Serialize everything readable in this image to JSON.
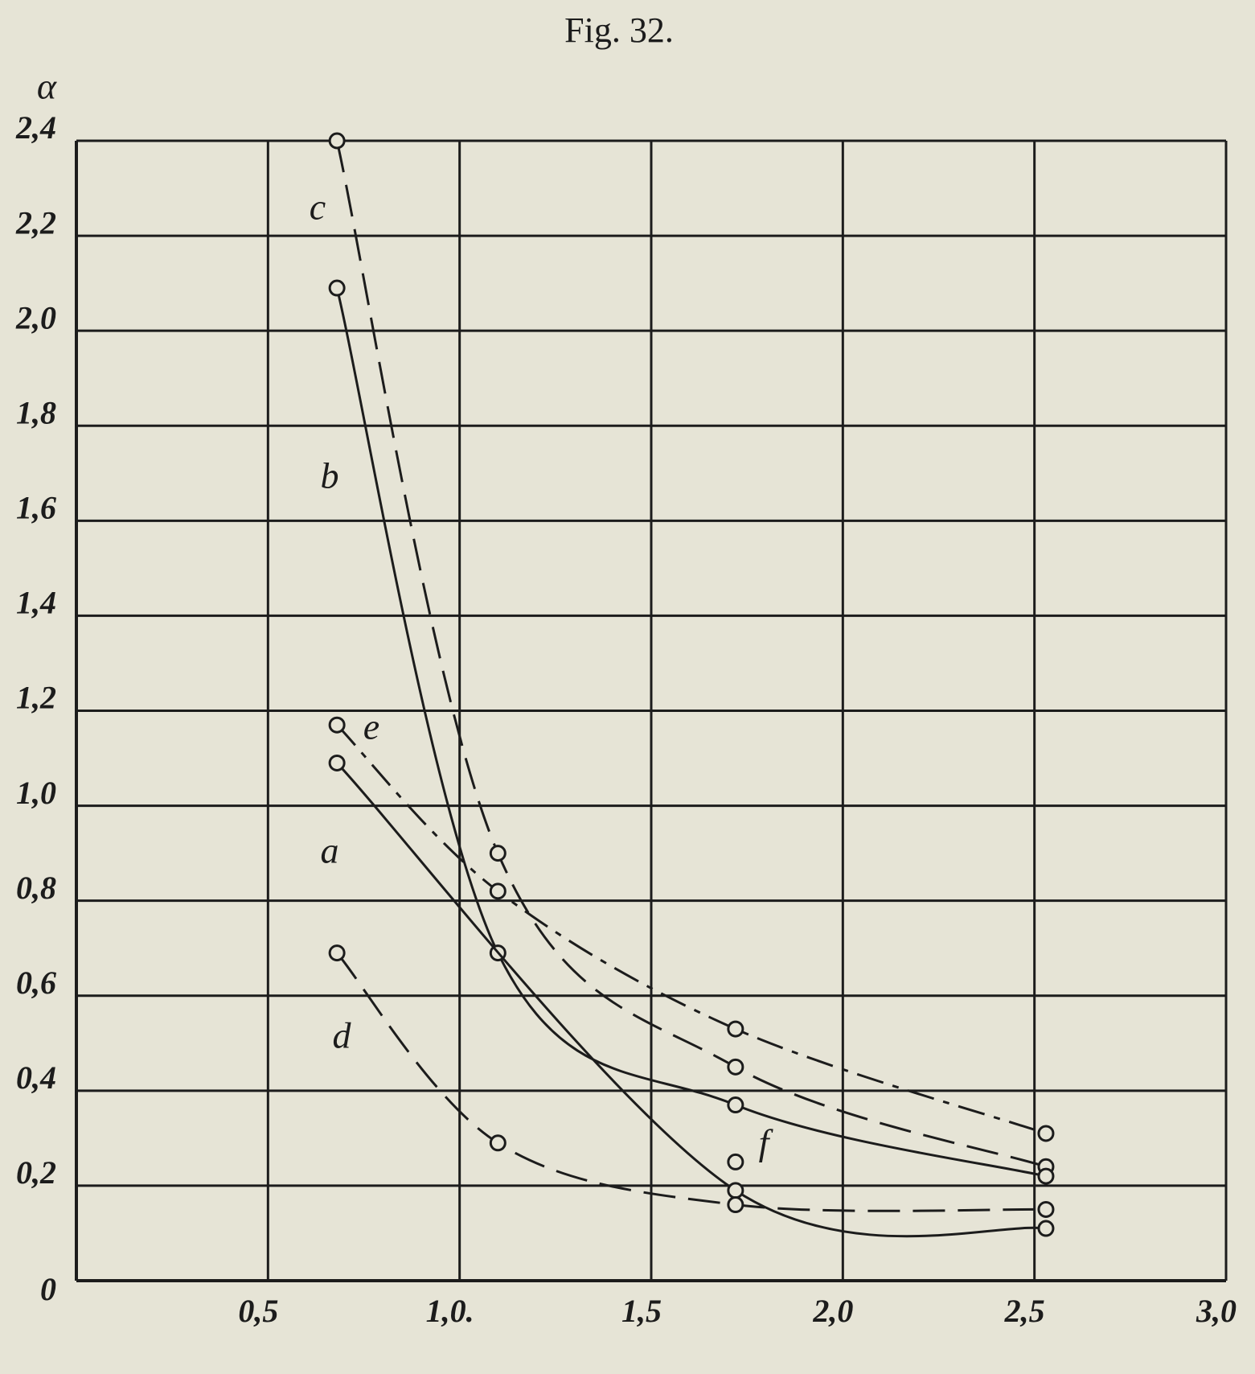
{
  "chart_data": {
    "type": "line",
    "title": "Fig. 32.",
    "y_label": "α",
    "xlim": [
      0,
      3.0
    ],
    "ylim": [
      0,
      2.4
    ],
    "grid": true,
    "color": "#1c1c1c",
    "xticks": [
      {
        "value": 0.5,
        "label": "0,5"
      },
      {
        "value": 1.0,
        "label": "1,0."
      },
      {
        "value": 1.5,
        "label": "1,5"
      },
      {
        "value": 2.0,
        "label": "2,0"
      },
      {
        "value": 2.5,
        "label": "2,5"
      },
      {
        "value": 3.0,
        "label": "3,0"
      }
    ],
    "yticks": [
      0,
      {
        "value": 0.2,
        "label": "0,2"
      },
      {
        "value": 0.4,
        "label": "0,4"
      },
      {
        "value": 0.6,
        "label": "0,6"
      },
      {
        "value": 0.8,
        "label": "0,8"
      },
      {
        "value": 1.0,
        "label": "1,0"
      },
      {
        "value": 1.2,
        "label": "1,2"
      },
      {
        "value": 1.4,
        "label": "1,4"
      },
      {
        "value": 1.6,
        "label": "1,6"
      },
      {
        "value": 1.8,
        "label": "1,8"
      },
      {
        "value": 2.0,
        "label": "2,0"
      },
      {
        "value": 2.2,
        "label": "2,2"
      },
      {
        "value": 2.4,
        "label": "2,4"
      }
    ],
    "series": [
      {
        "name": "c",
        "dash": "dashed",
        "x": [
          0.68,
          1.1,
          1.72,
          2.53
        ],
        "values": [
          2.4,
          0.9,
          0.45,
          0.24
        ]
      },
      {
        "name": "b",
        "dash": "solid",
        "x": [
          0.68,
          1.1,
          1.72,
          2.53
        ],
        "values": [
          2.09,
          0.69,
          0.37,
          0.22
        ]
      },
      {
        "name": "e",
        "dash": "dashdot",
        "x": [
          0.68,
          1.1,
          1.72,
          2.53
        ],
        "values": [
          1.17,
          0.82,
          0.53,
          0.31
        ]
      },
      {
        "name": "a",
        "dash": "solid",
        "x": [
          0.68,
          1.72,
          2.53
        ],
        "values": [
          1.09,
          0.19,
          0.11
        ]
      },
      {
        "name": "d",
        "dash": "dashed",
        "x": [
          0.68,
          1.1,
          1.72,
          2.53
        ],
        "values": [
          0.69,
          0.29,
          0.16,
          0.15
        ]
      },
      {
        "name": "f",
        "dash": "none",
        "x": [
          1.72
        ],
        "values": [
          0.25
        ]
      }
    ]
  }
}
